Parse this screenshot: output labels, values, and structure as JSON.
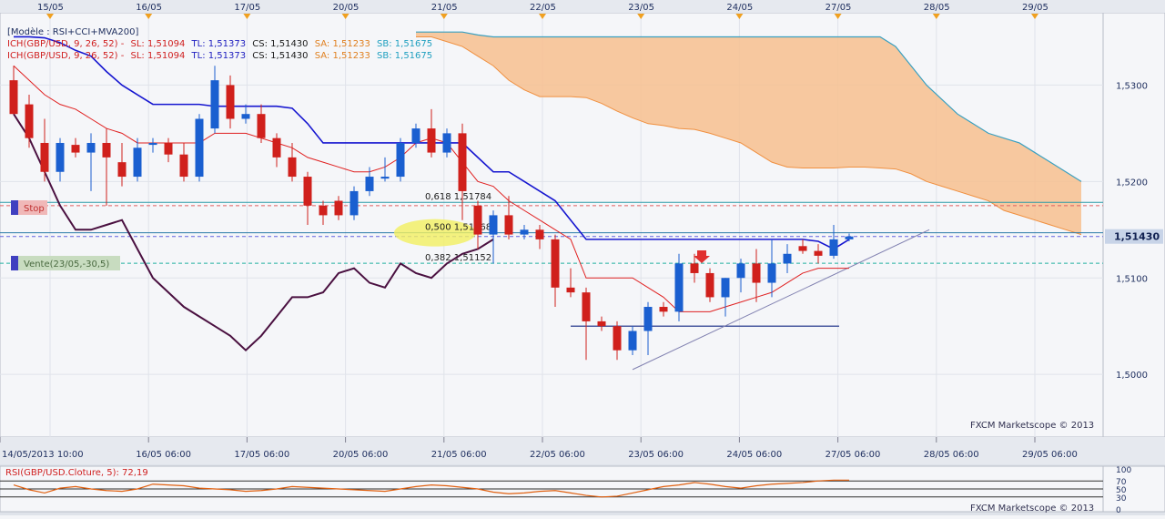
{
  "top_dates": [
    "15/05",
    "16/05",
    "17/05",
    "20/05",
    "21/05",
    "22/05",
    "23/05",
    "24/05",
    "27/05",
    "28/05",
    "29/05"
  ],
  "legend": {
    "model": "[Modèle : RSI+CCI+MVA200]",
    "ich_label_1": "ICH(GBP/USD, 9, 26, 52) -",
    "ich_label_2": "ICH(GBP/USD, 9, 26, 52) -",
    "sl": "SL: 1,51094",
    "tl": "TL: 1,51373",
    "cs": "CS: 1,51430",
    "sa": "SA: 1,51233",
    "sb": "SB: 1,51675"
  },
  "signals": {
    "stop": "Stop",
    "vente": "Vente(23/05,-30,5)"
  },
  "fib": [
    {
      "level": 0.618,
      "price": 1.51784,
      "label": "0,618 1,51784"
    },
    {
      "level": 0.5,
      "price": 1.51468,
      "label": "0,500 1,51468"
    },
    {
      "level": 0.382,
      "price": 1.51152,
      "label": "0,382 1,51152"
    }
  ],
  "price_axis": {
    "ticks": [
      "1,5300",
      "1,5200",
      "1,5100",
      "1,5000"
    ],
    "current": "1,51430"
  },
  "time_axis": [
    "14/05/2013 10:00",
    "16/05 06:00",
    "17/05 06:00",
    "20/05 06:00",
    "21/05 06:00",
    "22/05 06:00",
    "23/05 06:00",
    "24/05 06:00",
    "27/05 06:00",
    "28/05 06:00",
    "29/05 06:00"
  ],
  "watermark": "FXCM Marketscope © 2013",
  "rsi": {
    "label": "RSI(GBP/USD.Cloture, 5): 72,19",
    "ticks": [
      "100",
      "70",
      "50",
      "30",
      "0"
    ]
  },
  "colors": {
    "bull": "#1a5fd0",
    "bear": "#d0201c",
    "tenkan": "#1616d0",
    "kijun": "#e02020",
    "cloud": "#f7c08f",
    "chikou": "#4a1040",
    "rsi": "#e06010"
  },
  "chart_data": {
    "type": "candlestick",
    "symbol": "GBP/USD",
    "ylim": [
      1.4935,
      1.5375
    ],
    "candles": [
      {
        "o": 1.5305,
        "h": 1.532,
        "l": 1.527,
        "c": 1.527
      },
      {
        "o": 1.528,
        "h": 1.529,
        "l": 1.5235,
        "c": 1.5245
      },
      {
        "o": 1.524,
        "h": 1.5265,
        "l": 1.52,
        "c": 1.521
      },
      {
        "o": 1.521,
        "h": 1.5245,
        "l": 1.52,
        "c": 1.524
      },
      {
        "o": 1.5238,
        "h": 1.5245,
        "l": 1.5225,
        "c": 1.523
      },
      {
        "o": 1.523,
        "h": 1.525,
        "l": 1.519,
        "c": 1.524
      },
      {
        "o": 1.524,
        "h": 1.5255,
        "l": 1.5175,
        "c": 1.5225
      },
      {
        "o": 1.522,
        "h": 1.524,
        "l": 1.5195,
        "c": 1.5205
      },
      {
        "o": 1.5205,
        "h": 1.5245,
        "l": 1.52,
        "c": 1.5235
      },
      {
        "o": 1.5238,
        "h": 1.5245,
        "l": 1.523,
        "c": 1.524
      },
      {
        "o": 1.524,
        "h": 1.5245,
        "l": 1.522,
        "c": 1.5228
      },
      {
        "o": 1.5228,
        "h": 1.524,
        "l": 1.52,
        "c": 1.5205
      },
      {
        "o": 1.5205,
        "h": 1.527,
        "l": 1.52,
        "c": 1.5265
      },
      {
        "o": 1.5255,
        "h": 1.532,
        "l": 1.525,
        "c": 1.5305
      },
      {
        "o": 1.53,
        "h": 1.531,
        "l": 1.5255,
        "c": 1.5265
      },
      {
        "o": 1.5265,
        "h": 1.528,
        "l": 1.526,
        "c": 1.527
      },
      {
        "o": 1.527,
        "h": 1.528,
        "l": 1.524,
        "c": 1.5245
      },
      {
        "o": 1.5245,
        "h": 1.525,
        "l": 1.5215,
        "c": 1.5225
      },
      {
        "o": 1.5225,
        "h": 1.524,
        "l": 1.52,
        "c": 1.5205
      },
      {
        "o": 1.5205,
        "h": 1.521,
        "l": 1.5155,
        "c": 1.5175
      },
      {
        "o": 1.5175,
        "h": 1.518,
        "l": 1.5155,
        "c": 1.5165
      },
      {
        "o": 1.518,
        "h": 1.5185,
        "l": 1.516,
        "c": 1.5165
      },
      {
        "o": 1.5165,
        "h": 1.5195,
        "l": 1.516,
        "c": 1.519
      },
      {
        "o": 1.519,
        "h": 1.5215,
        "l": 1.5185,
        "c": 1.5205
      },
      {
        "o": 1.5203,
        "h": 1.5225,
        "l": 1.52,
        "c": 1.5205
      },
      {
        "o": 1.5205,
        "h": 1.5245,
        "l": 1.52,
        "c": 1.524
      },
      {
        "o": 1.524,
        "h": 1.526,
        "l": 1.5235,
        "c": 1.5255
      },
      {
        "o": 1.5255,
        "h": 1.5275,
        "l": 1.5225,
        "c": 1.523
      },
      {
        "o": 1.523,
        "h": 1.5255,
        "l": 1.5225,
        "c": 1.525
      },
      {
        "o": 1.525,
        "h": 1.526,
        "l": 1.516,
        "c": 1.519
      },
      {
        "o": 1.5175,
        "h": 1.518,
        "l": 1.513,
        "c": 1.5145
      },
      {
        "o": 1.5145,
        "h": 1.517,
        "l": 1.5115,
        "c": 1.5165
      },
      {
        "o": 1.5165,
        "h": 1.5185,
        "l": 1.514,
        "c": 1.5145
      },
      {
        "o": 1.5145,
        "h": 1.5155,
        "l": 1.514,
        "c": 1.515
      },
      {
        "o": 1.515,
        "h": 1.5155,
        "l": 1.513,
        "c": 1.514
      },
      {
        "o": 1.514,
        "h": 1.5145,
        "l": 1.507,
        "c": 1.509
      },
      {
        "o": 1.509,
        "h": 1.511,
        "l": 1.508,
        "c": 1.5085
      },
      {
        "o": 1.5085,
        "h": 1.509,
        "l": 1.5015,
        "c": 1.5055
      },
      {
        "o": 1.5055,
        "h": 1.506,
        "l": 1.5045,
        "c": 1.505
      },
      {
        "o": 1.505,
        "h": 1.5055,
        "l": 1.5015,
        "c": 1.5025
      },
      {
        "o": 1.5025,
        "h": 1.505,
        "l": 1.502,
        "c": 1.5045
      },
      {
        "o": 1.5045,
        "h": 1.5075,
        "l": 1.502,
        "c": 1.507
      },
      {
        "o": 1.507,
        "h": 1.5075,
        "l": 1.506,
        "c": 1.5065
      },
      {
        "o": 1.5065,
        "h": 1.5125,
        "l": 1.5055,
        "c": 1.5115
      },
      {
        "o": 1.5115,
        "h": 1.5125,
        "l": 1.5095,
        "c": 1.5105
      },
      {
        "o": 1.5105,
        "h": 1.511,
        "l": 1.5075,
        "c": 1.508
      },
      {
        "o": 1.508,
        "h": 1.51,
        "l": 1.506,
        "c": 1.51
      },
      {
        "o": 1.51,
        "h": 1.512,
        "l": 1.5085,
        "c": 1.5115
      },
      {
        "o": 1.5115,
        "h": 1.513,
        "l": 1.5075,
        "c": 1.5095
      },
      {
        "o": 1.5095,
        "h": 1.514,
        "l": 1.508,
        "c": 1.5115
      },
      {
        "o": 1.5115,
        "h": 1.5135,
        "l": 1.5105,
        "c": 1.5125
      },
      {
        "o": 1.5133,
        "h": 1.514,
        "l": 1.5125,
        "c": 1.5128
      },
      {
        "o": 1.5128,
        "h": 1.5135,
        "l": 1.5115,
        "c": 1.5123
      },
      {
        "o": 1.5123,
        "h": 1.5155,
        "l": 1.512,
        "c": 1.514
      },
      {
        "o": 1.514,
        "h": 1.5146,
        "l": 1.5138,
        "c": 1.5143
      }
    ],
    "tenkan_sen": [
      1.535,
      1.535,
      1.5349,
      1.5344,
      1.5336,
      1.533,
      1.5314,
      1.53,
      1.529,
      1.528,
      1.528,
      1.528,
      1.528,
      1.5278,
      1.5278,
      1.5278,
      1.5278,
      1.5278,
      1.5276,
      1.526,
      1.524,
      1.524,
      1.524,
      1.524,
      1.524,
      1.524,
      1.524,
      1.524,
      1.524,
      1.524,
      1.5225,
      1.521,
      1.521,
      1.52,
      1.519,
      1.518,
      1.516,
      1.514,
      1.514,
      1.514,
      1.514,
      1.514,
      1.514,
      1.514,
      1.514,
      1.514,
      1.514,
      1.514,
      1.514,
      1.514,
      1.514,
      1.514,
      1.5138,
      1.513,
      1.514
    ],
    "kijun_sen": [
      1.532,
      1.5305,
      1.529,
      1.528,
      1.5275,
      1.5265,
      1.5255,
      1.525,
      1.524,
      1.524,
      1.524,
      1.524,
      1.524,
      1.525,
      1.525,
      1.525,
      1.5245,
      1.524,
      1.5235,
      1.5225,
      1.522,
      1.5215,
      1.521,
      1.521,
      1.5215,
      1.5225,
      1.524,
      1.5245,
      1.524,
      1.522,
      1.52,
      1.5195,
      1.518,
      1.517,
      1.516,
      1.515,
      1.514,
      1.51,
      1.51,
      1.51,
      1.51,
      1.509,
      1.508,
      1.5065,
      1.5065,
      1.5065,
      1.507,
      1.5075,
      1.508,
      1.5085,
      1.5095,
      1.5105,
      1.511,
      1.511,
      1.511
    ],
    "chikou": {
      "start_index": 0,
      "values": [
        1.527,
        1.5245,
        1.521,
        1.5175,
        1.515,
        1.515,
        1.5155,
        1.516,
        1.513,
        1.51,
        1.5085,
        1.507,
        1.506,
        1.505,
        1.504,
        1.5025,
        1.504,
        1.506,
        1.508,
        1.508,
        1.5085,
        1.5105,
        1.511,
        1.5095,
        1.509,
        1.5115,
        1.5105,
        1.51,
        1.5115,
        1.5125,
        1.513,
        1.514
      ]
    },
    "senkou_a": [
      null,
      null,
      null,
      null,
      null,
      null,
      null,
      null,
      null,
      null,
      null,
      null,
      null,
      null,
      null,
      null,
      null,
      null,
      null,
      null,
      null,
      null,
      null,
      null,
      null,
      null,
      1.535,
      1.535,
      1.5345,
      1.534,
      1.533,
      1.532,
      1.5305,
      1.5295,
      1.5288,
      1.5288,
      1.5288,
      1.5287,
      1.5281,
      1.5273,
      1.5266,
      1.526,
      1.5258,
      1.5255,
      1.5254,
      1.525,
      1.5245,
      1.524,
      1.523,
      1.522,
      1.5215,
      1.5214,
      1.5214,
      1.5214,
      1.5215,
      1.5215,
      1.5214,
      1.5213,
      1.5208,
      1.52,
      1.5195,
      1.519,
      1.5185,
      1.518,
      1.517,
      1.5165,
      1.516,
      1.5155,
      1.515,
      1.5145
    ],
    "senkou_b": [
      null,
      null,
      null,
      null,
      null,
      null,
      null,
      null,
      null,
      null,
      null,
      null,
      null,
      null,
      null,
      null,
      null,
      null,
      null,
      null,
      null,
      null,
      null,
      null,
      null,
      null,
      1.5355,
      1.5355,
      1.5355,
      1.5355,
      1.5352,
      1.535,
      1.535,
      1.535,
      1.535,
      1.535,
      1.535,
      1.535,
      1.535,
      1.535,
      1.535,
      1.535,
      1.535,
      1.535,
      1.535,
      1.535,
      1.535,
      1.535,
      1.535,
      1.535,
      1.535,
      1.535,
      1.535,
      1.535,
      1.535,
      1.535,
      1.535,
      1.534,
      1.532,
      1.53,
      1.5285,
      1.527,
      1.526,
      1.525,
      1.5245,
      1.524,
      1.523,
      1.522,
      1.521,
      1.52
    ],
    "horizontal_lines": [
      {
        "price": 1.51784,
        "style": "solid",
        "color": "#2a9aa8"
      },
      {
        "price": 1.5175,
        "style": "dashed",
        "color": "#e06060"
      },
      {
        "price": 1.51468,
        "style": "solid",
        "color": "#2a7aa8"
      },
      {
        "price": 1.5143,
        "style": "dashed",
        "color": "#6060e0"
      },
      {
        "price": 1.51152,
        "style": "dashed",
        "color": "#20b0a0"
      }
    ],
    "support_segment": {
      "from_index": 36,
      "to_index": 51,
      "price": 1.505
    },
    "trendline": {
      "from_index": 40,
      "from_price": 1.5005,
      "to_index": 58,
      "to_price": 1.515
    },
    "rsi_values": [
      60,
      48,
      40,
      52,
      56,
      50,
      46,
      44,
      50,
      62,
      60,
      58,
      52,
      50,
      48,
      44,
      46,
      50,
      56,
      54,
      52,
      50,
      48,
      46,
      44,
      50,
      56,
      60,
      58,
      54,
      50,
      42,
      38,
      40,
      44,
      46,
      40,
      34,
      30,
      32,
      40,
      48,
      56,
      60,
      66,
      62,
      56,
      52,
      58,
      62,
      64,
      66,
      70,
      72,
      72
    ]
  }
}
